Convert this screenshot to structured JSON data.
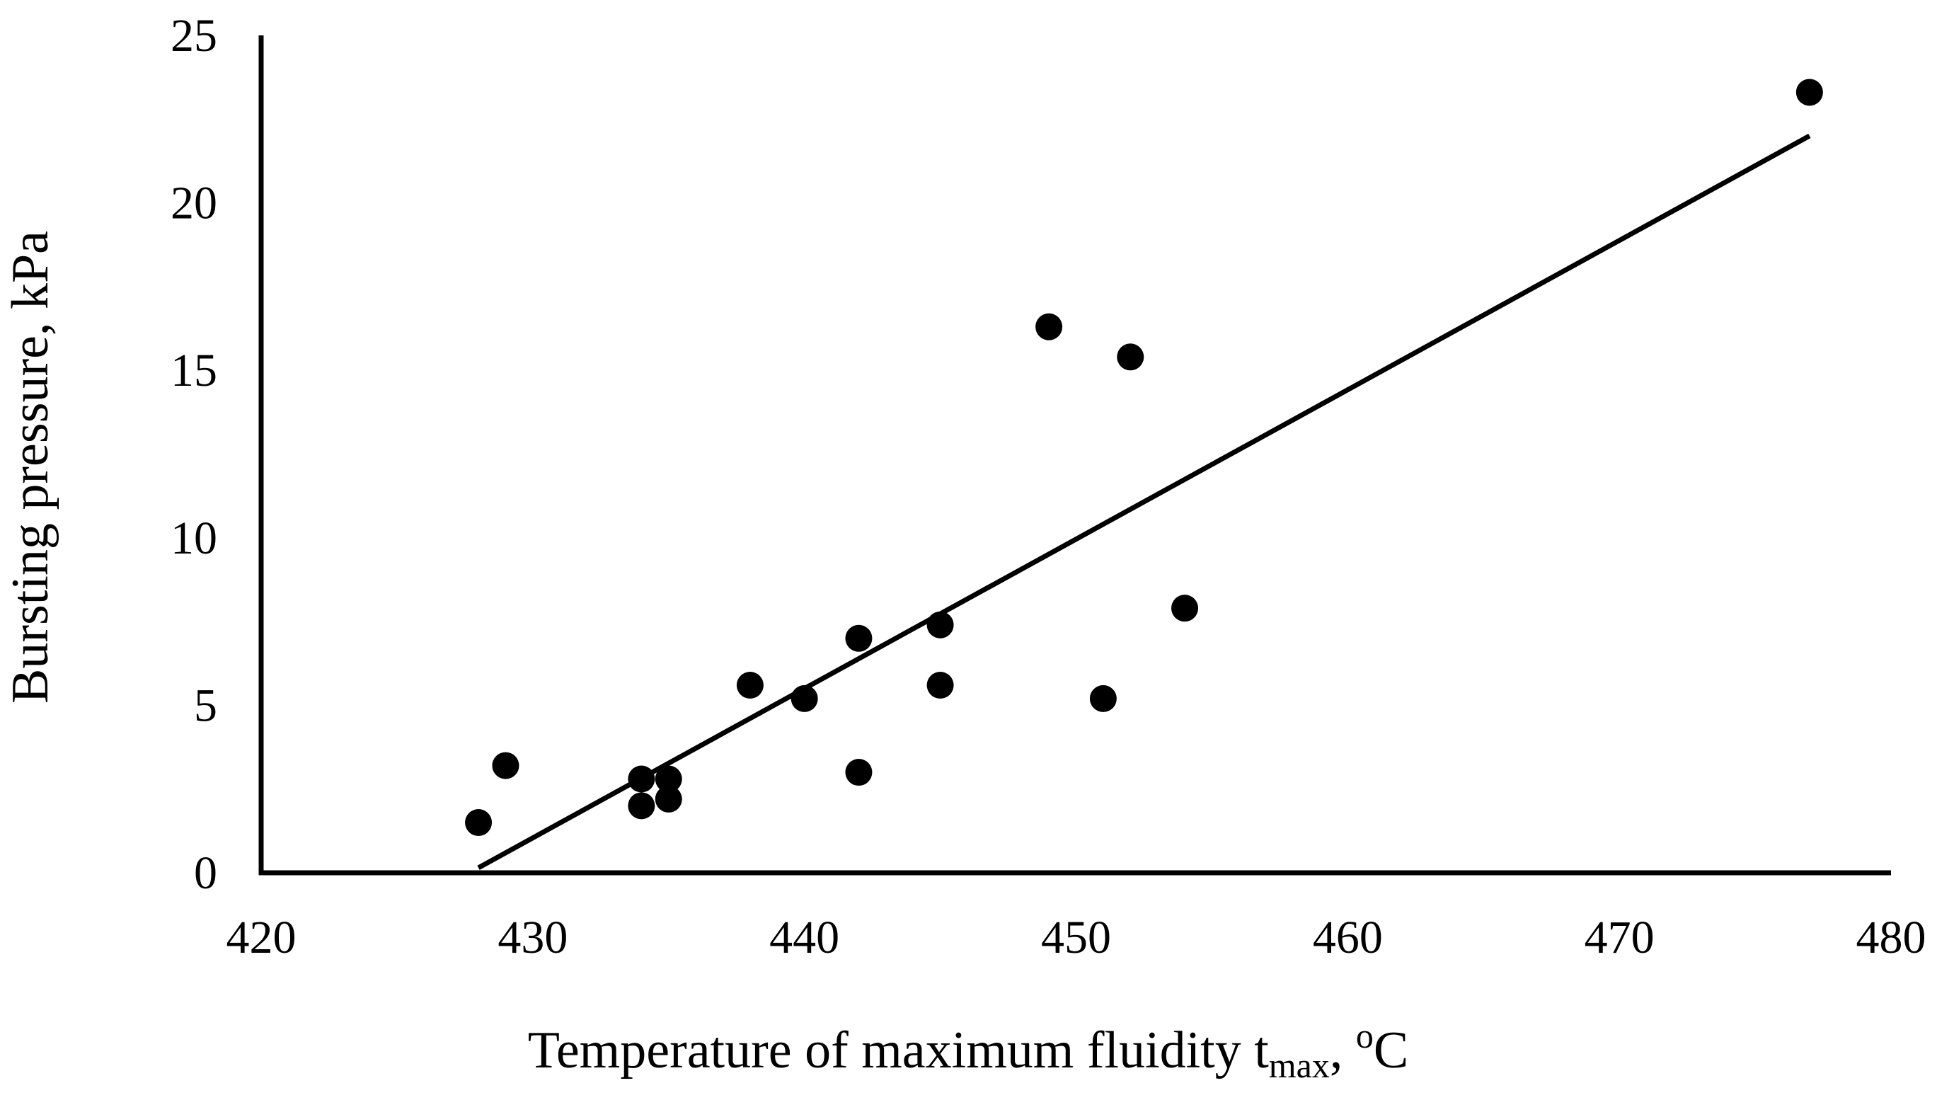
{
  "chart_data": {
    "type": "scatter",
    "title": "",
    "xlabel": {
      "main": "Temperature of maximum fluidity t",
      "subscript": "max",
      "separator": ", ",
      "unit_superscript": "o",
      "unit": "C"
    },
    "ylabel": "Bursting pressure, kPa",
    "xlim": [
      420,
      480
    ],
    "ylim": [
      0,
      25
    ],
    "x_ticks": [
      "420",
      "430",
      "440",
      "450",
      "460",
      "470",
      "480"
    ],
    "y_ticks": [
      "0",
      "5",
      "10",
      "15",
      "20",
      "25"
    ],
    "grid": false,
    "legend": "none",
    "series": [
      {
        "marker": "filled-circle",
        "color": "#000000",
        "points": [
          {
            "x": 428,
            "y": 1.5
          },
          {
            "x": 429,
            "y": 3.2
          },
          {
            "x": 434,
            "y": 2.8
          },
          {
            "x": 434,
            "y": 2.0
          },
          {
            "x": 435,
            "y": 2.8
          },
          {
            "x": 435,
            "y": 2.2
          },
          {
            "x": 438,
            "y": 5.6
          },
          {
            "x": 440,
            "y": 5.2
          },
          {
            "x": 442,
            "y": 7.0
          },
          {
            "x": 442,
            "y": 3.0
          },
          {
            "x": 445,
            "y": 7.4
          },
          {
            "x": 445,
            "y": 5.6
          },
          {
            "x": 449,
            "y": 16.3
          },
          {
            "x": 451,
            "y": 5.2
          },
          {
            "x": 452,
            "y": 15.4
          },
          {
            "x": 454,
            "y": 7.9
          },
          {
            "x": 477,
            "y": 23.3
          }
        ]
      }
    ],
    "trendline": {
      "type": "linear",
      "color": "#000000",
      "x_start": 428,
      "y_start": 0.15,
      "x_end": 477,
      "y_end": 22.0
    }
  }
}
